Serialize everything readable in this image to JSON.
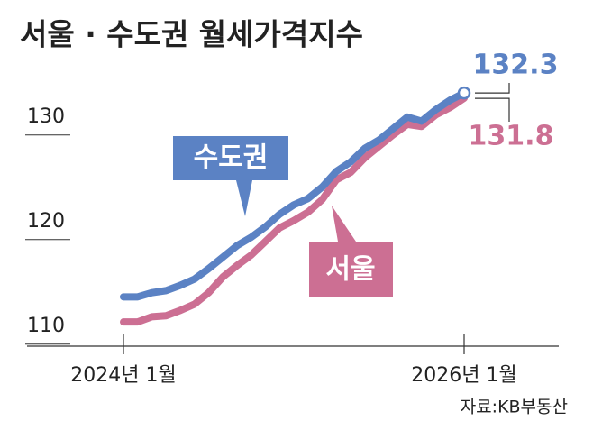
{
  "chart_data": {
    "type": "line",
    "title": "서울 · 수도권 월세가격지수",
    "source": "자료:KB부동산",
    "categories": [
      "2024년 1월",
      null,
      null,
      null,
      null,
      null,
      null,
      null,
      null,
      null,
      null,
      null,
      null,
      null,
      null,
      null,
      null,
      null,
      null,
      null,
      null,
      null,
      null,
      null,
      "2026년 1월"
    ],
    "series": [
      {
        "name": "수도권",
        "color": "#5b82c4",
        "values": [
          112.8,
          112.8,
          113.2,
          113.4,
          113.9,
          114.5,
          115.5,
          116.6,
          117.7,
          118.5,
          119.5,
          120.7,
          121.6,
          122.2,
          123.3,
          124.8,
          125.7,
          127.0,
          127.8,
          128.9,
          130.0,
          129.6,
          130.7,
          131.6,
          132.3
        ]
      },
      {
        "name": "서울",
        "color": "#cc6f93",
        "values": [
          110.4,
          110.4,
          110.9,
          111.0,
          111.5,
          112.1,
          113.2,
          114.7,
          115.8,
          116.8,
          118.1,
          119.4,
          120.1,
          120.9,
          122.1,
          124.0,
          124.7,
          126.1,
          127.2,
          128.3,
          129.3,
          129.1,
          130.2,
          130.9,
          131.8
        ]
      }
    ],
    "ylim": [
      108,
      133
    ],
    "yticks": [
      110,
      120,
      130
    ]
  }
}
